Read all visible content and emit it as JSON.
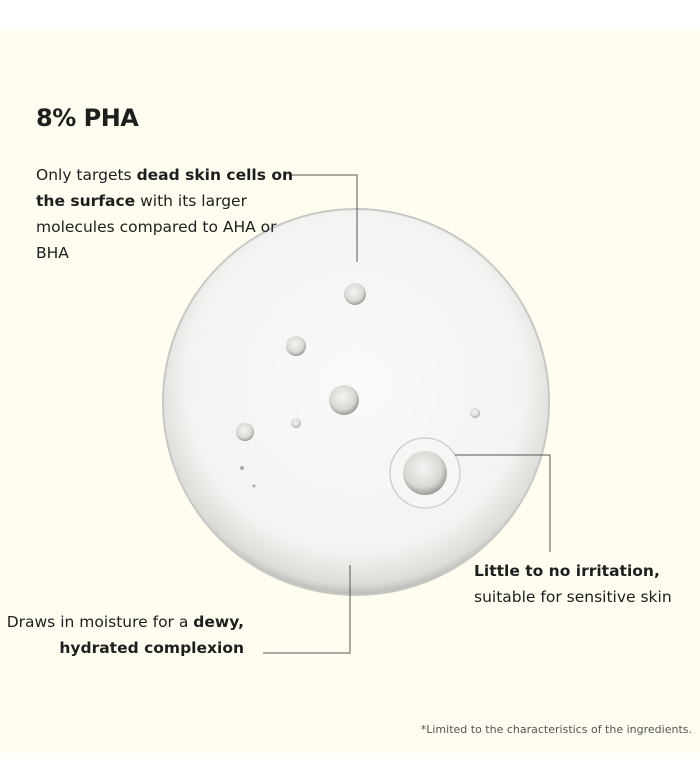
{
  "title": "8% PHA",
  "callouts": {
    "top": {
      "pre": "Only targets ",
      "bold": "dead skin cells on the surface",
      "post": " with its larger molecules compared to AHA or BHA"
    },
    "right": {
      "bold": "Little to no irritation,",
      "post": "suitable for sensitive skin"
    },
    "bottom": {
      "pre": "Draws in moisture for a ",
      "bold": "dewy, hydrated complexion"
    }
  },
  "footnote": "*Limited to the characteristics of the ingredients.",
  "colors": {
    "background": "#fffdf0",
    "text": "#1e1e1e",
    "line": "#555555"
  }
}
